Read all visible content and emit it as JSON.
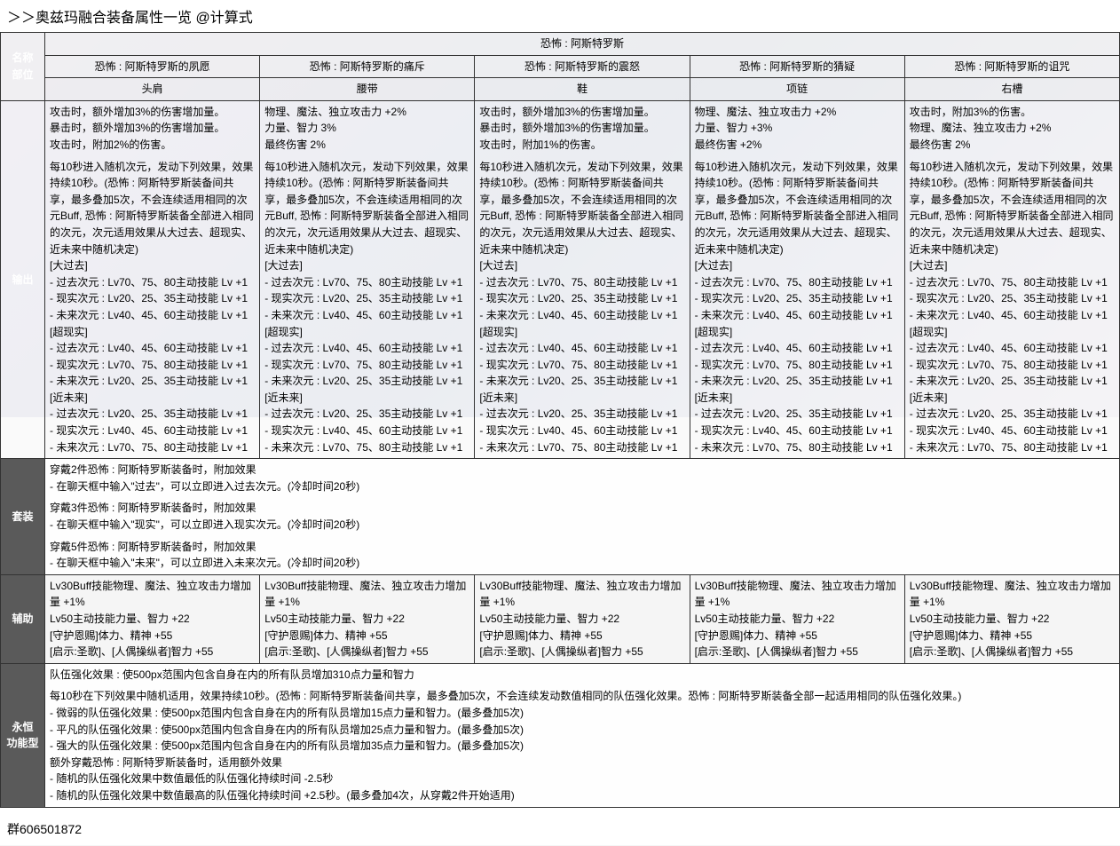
{
  "title": "＞＞奥兹玛融合装备属性一览 @计算式",
  "footer": "群606501872",
  "labels": {
    "name": "名称",
    "part": "部位",
    "output": "输出",
    "set": "套装",
    "assist": "辅助",
    "eternal": "永恒\n功能型"
  },
  "setHeader": "恐怖 : 阿斯特罗斯",
  "columns": [
    {
      "name": "恐怖 : 阿斯特罗斯的夙愿",
      "part": "头肩"
    },
    {
      "name": "恐怖 : 阿斯特罗斯的痛斥",
      "part": "腰带"
    },
    {
      "name": "恐怖 : 阿斯特罗斯的震怒",
      "part": "鞋"
    },
    {
      "name": "恐怖 : 阿斯特罗斯的猜疑",
      "part": "项链"
    },
    {
      "name": "恐怖 : 阿斯特罗斯的诅咒",
      "part": "右槽"
    }
  ],
  "outputTop": [
    "攻击时，额外增加3%的伤害增加量。\n暴击时，额外增加3%的伤害增加量。\n攻击时，附加2%的伤害。",
    "物理、魔法、独立攻击力 +2%\n力量、智力 3%\n最终伤害 2%",
    "攻击时，额外增加3%的伤害增加量。\n暴击时，额外增加3%的伤害增加量。\n攻击时，附加1%的伤害。",
    "物理、魔法、独立攻击力 +2%\n力量、智力 +3%\n最终伤害 +2%",
    "攻击时，附加3%的伤害。\n物理、魔法、独立攻击力 +2%\n最终伤害 2%"
  ],
  "outputCommon": "每10秒进入随机次元，发动下列效果，效果持续10秒。(恐怖 : 阿斯特罗斯装备间共享，最多叠加5次，不会连续适用相同的次元Buff, 恐怖 : 阿斯特罗斯装备全部进入相同的次元，次元适用效果从大过去、超现实、近未来中随机决定)\n[大过去]\n- 过去次元 : Lv70、75、80主动技能 Lv +1\n- 现实次元 : Lv20、25、35主动技能 Lv +1\n- 未来次元 : Lv40、45、60主动技能 Lv +1\n[超现实]\n- 过去次元 : Lv40、45、60主动技能 Lv +1\n- 现实次元 : Lv70、75、80主动技能 Lv +1\n- 未来次元 : Lv20、25、35主动技能 Lv +1\n[近未来]\n- 过去次元 : Lv20、25、35主动技能 Lv +1\n- 现实次元 : Lv40、45、60主动技能 Lv +1\n- 未来次元 : Lv70、75、80主动技能 Lv +1",
  "setText": "穿戴2件恐怖 : 阿斯特罗斯装备时，附加效果\n- 在聊天框中输入\"过去\"，可以立即进入过去次元。(冷却时间20秒)\n\n穿戴3件恐怖 : 阿斯特罗斯装备时，附加效果\n- 在聊天框中输入\"现实\"，可以立即进入现实次元。(冷却时间20秒)\n\n穿戴5件恐怖 : 阿斯特罗斯装备时，附加效果\n- 在聊天框中输入\"未来\"，可以立即进入未来次元。(冷却时间20秒)",
  "assistText": "Lv30Buff技能物理、魔法、独立攻击力增加量 +1%\nLv50主动技能力量、智力 +22\n[守护恩赐]体力、精神 +55\n[启示:圣歌]、[人偶操纵者]智力 +55",
  "eternalText": "队伍强化效果 : 使500px范围内包含自身在内的所有队员增加310点力量和智力\n\n每10秒在下列效果中随机适用，效果持续10秒。(恐怖 : 阿斯特罗斯装备间共享，最多叠加5次，不会连续发动数值相同的队伍强化效果。恐怖 : 阿斯特罗斯装备全部一起适用相同的队伍强化效果。)\n- 微弱的队伍强化效果 : 使500px范围内包含自身在内的所有队员增加15点力量和智力。(最多叠加5次)\n- 平凡的队伍强化效果 : 使500px范围内包含自身在内的所有队员增加25点力量和智力。(最多叠加5次)\n- 强大的队伍强化效果 : 使500px范围内包含自身在内的所有队员增加35点力量和智力。(最多叠加5次)\n额外穿戴恐怖 : 阿斯特罗斯装备时，适用额外效果\n- 随机的队伍强化效果中数值最低的队伍强化持续时间 -2.5秒\n- 随机的队伍强化效果中数值最高的队伍强化持续时间 +2.5秒。(最多叠加4次，从穿戴2件开始适用)"
}
